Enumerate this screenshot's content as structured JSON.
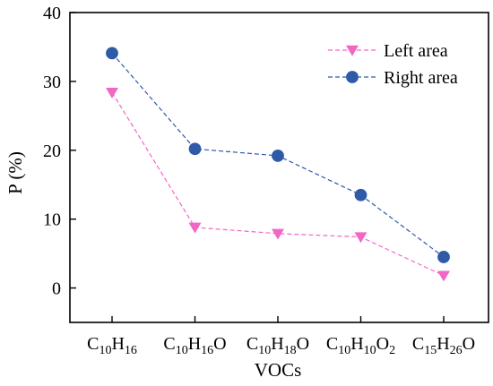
{
  "chart_data": {
    "type": "line",
    "xlabel": "VOCs",
    "ylabel": "P (%)",
    "ylim": [
      -5,
      40
    ],
    "yticks": [
      0,
      10,
      20,
      30,
      40
    ],
    "grid": false,
    "legend_position": "top-right",
    "categories": [
      {
        "label": "C10H16",
        "parts": [
          [
            "C",
            ""
          ],
          [
            "10",
            "sub"
          ],
          [
            "H",
            ""
          ],
          [
            "16",
            "sub"
          ]
        ]
      },
      {
        "label": "C10H16O",
        "parts": [
          [
            "C",
            ""
          ],
          [
            "10",
            "sub"
          ],
          [
            "H",
            ""
          ],
          [
            "16",
            "sub"
          ],
          [
            "O",
            ""
          ]
        ]
      },
      {
        "label": "C10H18O",
        "parts": [
          [
            "C",
            ""
          ],
          [
            "10",
            "sub"
          ],
          [
            "H",
            ""
          ],
          [
            "18",
            "sub"
          ],
          [
            "O",
            ""
          ]
        ]
      },
      {
        "label": "C10H10O2",
        "parts": [
          [
            "C",
            ""
          ],
          [
            "10",
            "sub"
          ],
          [
            "H",
            ""
          ],
          [
            "10",
            "sub"
          ],
          [
            "O",
            ""
          ],
          [
            "2",
            "sub"
          ]
        ]
      },
      {
        "label": "C15H26O",
        "parts": [
          [
            "C",
            ""
          ],
          [
            "15",
            "sub"
          ],
          [
            "H",
            ""
          ],
          [
            "26",
            "sub"
          ],
          [
            "O",
            ""
          ]
        ]
      }
    ],
    "series": [
      {
        "name": "Left area",
        "marker": "triangle-down",
        "color": "#f266c4",
        "values": [
          28.4,
          8.8,
          7.9,
          7.4,
          1.8
        ]
      },
      {
        "name": "Right area",
        "marker": "circle",
        "color": "#2e5aa8",
        "values": [
          34.1,
          20.2,
          19.2,
          13.5,
          4.5
        ]
      }
    ]
  }
}
